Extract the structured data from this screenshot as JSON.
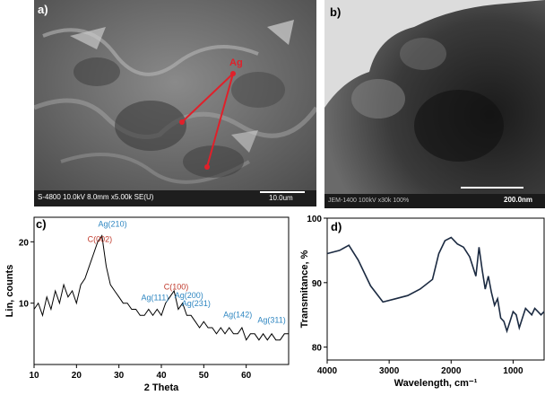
{
  "panels": {
    "a": {
      "letter": "a)",
      "info_bar": "S-4800 10.0kV 8.0mm x5.00k SE(U)",
      "scale_label": "10.0um",
      "marker_label": "Ag"
    },
    "b": {
      "letter": "b)",
      "info_bar": "JEM-1400 100kV x30k 100%",
      "scale_label": "200.0nm"
    }
  },
  "colors": {
    "xrd_line": "#000000",
    "carbon_label": "#c0392b",
    "silver_label": "#2e86c1",
    "ftir_line": "#1b2a41",
    "marker": "#e0202a"
  },
  "chart_data": [
    {
      "type": "line",
      "panel": "c)",
      "xlabel": "2 Theta",
      "ylabel": "Lin, counts",
      "xlim": [
        10,
        70
      ],
      "ylim": [
        0,
        24
      ],
      "xticks": [
        "10",
        "20",
        "30",
        "40",
        "50",
        "60"
      ],
      "yticks": [
        "10",
        "20"
      ],
      "x": [
        10,
        11,
        12,
        13,
        14,
        15,
        16,
        17,
        18,
        19,
        20,
        21,
        22,
        23,
        24,
        25,
        26,
        27,
        28,
        29,
        30,
        31,
        32,
        33,
        34,
        35,
        36,
        37,
        38,
        39,
        40,
        41,
        42,
        43,
        44,
        45,
        46,
        47,
        48,
        49,
        50,
        51,
        52,
        53,
        54,
        55,
        56,
        57,
        58,
        59,
        60,
        61,
        62,
        63,
        64,
        65,
        66,
        67,
        68,
        69,
        70
      ],
      "y": [
        9,
        10,
        8,
        11,
        9,
        12,
        10,
        13,
        11,
        12,
        10,
        13,
        14,
        16,
        18,
        20,
        21,
        16,
        13,
        12,
        11,
        10,
        10,
        9,
        9,
        8,
        8,
        9,
        8,
        9,
        8,
        10,
        11,
        12,
        9,
        10,
        8,
        8,
        7,
        6,
        7,
        6,
        6,
        5,
        6,
        5,
        6,
        5,
        5,
        6,
        4,
        5,
        5,
        4,
        5,
        4,
        5,
        4,
        4,
        5,
        5
      ],
      "annotations": [
        {
          "label": "C(002)",
          "x": 25.5,
          "y": 20.0,
          "kind": "carbon"
        },
        {
          "label": "Ag(210)",
          "x": 28.5,
          "y": 22.5,
          "kind": "silver"
        },
        {
          "label": "Ag(111)",
          "x": 38.5,
          "y": 10.5,
          "kind": "silver"
        },
        {
          "label": "C(100)",
          "x": 43.5,
          "y": 12.2,
          "kind": "carbon"
        },
        {
          "label": "Ag(200)",
          "x": 46.5,
          "y": 10.8,
          "kind": "silver"
        },
        {
          "label": "Ag(231)",
          "x": 48.2,
          "y": 9.5,
          "kind": "silver"
        },
        {
          "label": "Ag(142)",
          "x": 58.0,
          "y": 7.7,
          "kind": "silver"
        },
        {
          "label": "Ag(311)",
          "x": 66.0,
          "y": 6.8,
          "kind": "silver"
        }
      ]
    },
    {
      "type": "line",
      "panel": "d)",
      "xlabel": "Wavelength, cm⁻¹",
      "ylabel": "Transmitance, %",
      "xlim": [
        4000,
        500
      ],
      "ylim": [
        78,
        100
      ],
      "xticks": [
        "4000",
        "3000",
        "2000",
        "1000"
      ],
      "yticks": [
        "80",
        "90",
        "100"
      ],
      "x": [
        4000,
        3800,
        3650,
        3500,
        3300,
        3100,
        2900,
        2700,
        2500,
        2300,
        2200,
        2100,
        2000,
        1900,
        1800,
        1700,
        1600,
        1550,
        1500,
        1450,
        1400,
        1350,
        1300,
        1250,
        1200,
        1150,
        1100,
        1050,
        1000,
        950,
        900,
        850,
        800,
        750,
        700,
        650,
        600,
        550,
        500
      ],
      "y": [
        94.5,
        95.0,
        95.8,
        93.5,
        89.5,
        87.0,
        87.5,
        88.0,
        89.0,
        90.5,
        94.5,
        96.5,
        97.0,
        96.0,
        95.5,
        94.0,
        91.0,
        95.5,
        92.0,
        89.0,
        91.0,
        88.5,
        86.5,
        87.5,
        84.5,
        84.0,
        82.5,
        84.0,
        85.5,
        85.0,
        83.0,
        84.5,
        86.0,
        85.5,
        85.0,
        86.0,
        85.5,
        85.0,
        85.5
      ]
    }
  ]
}
